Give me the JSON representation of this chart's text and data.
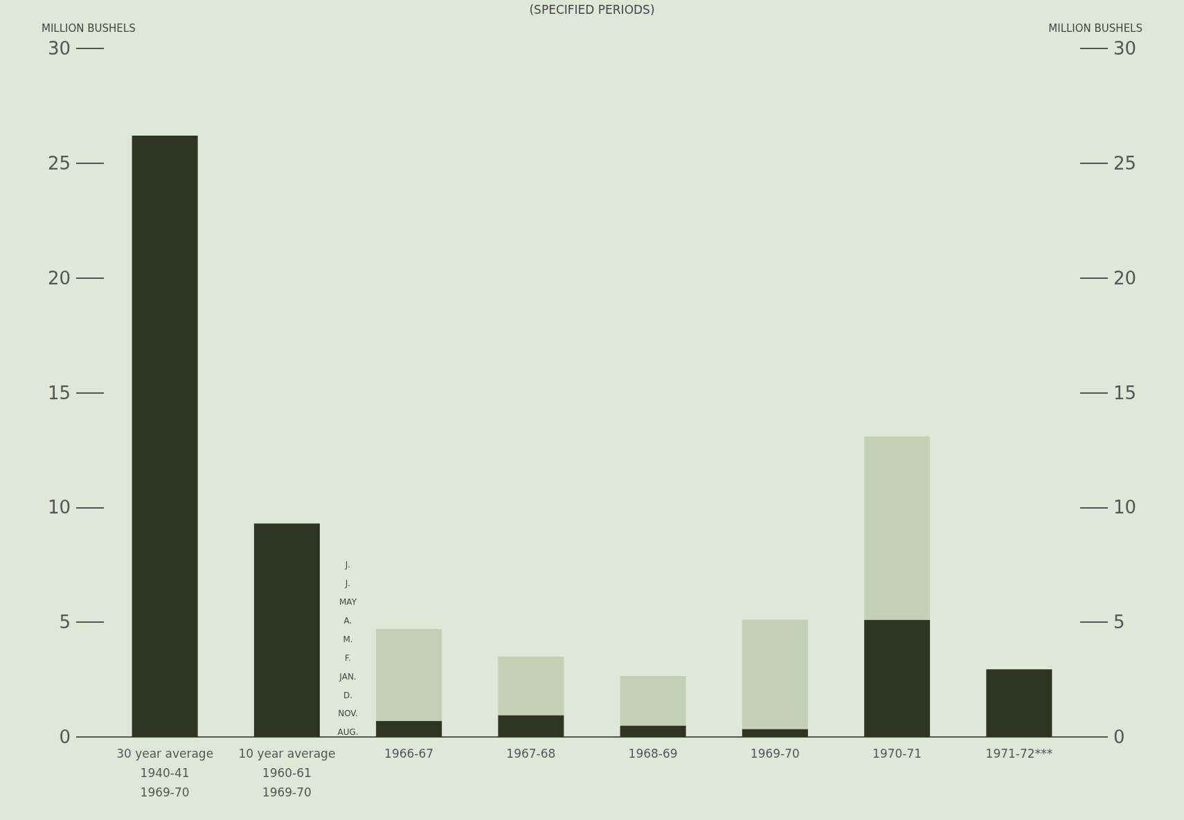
{
  "chart_data": {
    "type": "bar",
    "title": "(SPECIFIED PERIODS)",
    "ylabel": "MILLION BUSHELS",
    "y2label": "MILLION BUSHELS",
    "categories": [
      "30 year average\n1940-41\n1969-70",
      "10 year average\n1960-61\n1969-70",
      "1966-67",
      "1967-68",
      "1968-69",
      "1969-70",
      "1970-71",
      "1971-72***"
    ],
    "stacked": true,
    "series": [
      {
        "color": "#2e3322",
        "values": [
          26.2,
          9.3,
          0.7,
          0.95,
          0.5,
          0.35,
          5.1,
          2.95
        ]
      },
      {
        "color": "#c3d0b6",
        "values": [
          null,
          null,
          4.0,
          2.55,
          2.15,
          4.75,
          8.0,
          null
        ]
      }
    ],
    "ylim": [
      0,
      30
    ],
    "yticks": [
      0,
      5,
      10,
      15,
      20,
      25,
      30
    ],
    "y2lim": [
      0,
      30
    ],
    "y2ticks": [
      0,
      5,
      10,
      15,
      20,
      25,
      30
    ],
    "annotations": [
      "J.",
      "J.",
      "MAY",
      "A.",
      "M.",
      "F.",
      "JAN.",
      "D.",
      "NOV.",
      "AUG."
    ],
    "grid": false
  }
}
